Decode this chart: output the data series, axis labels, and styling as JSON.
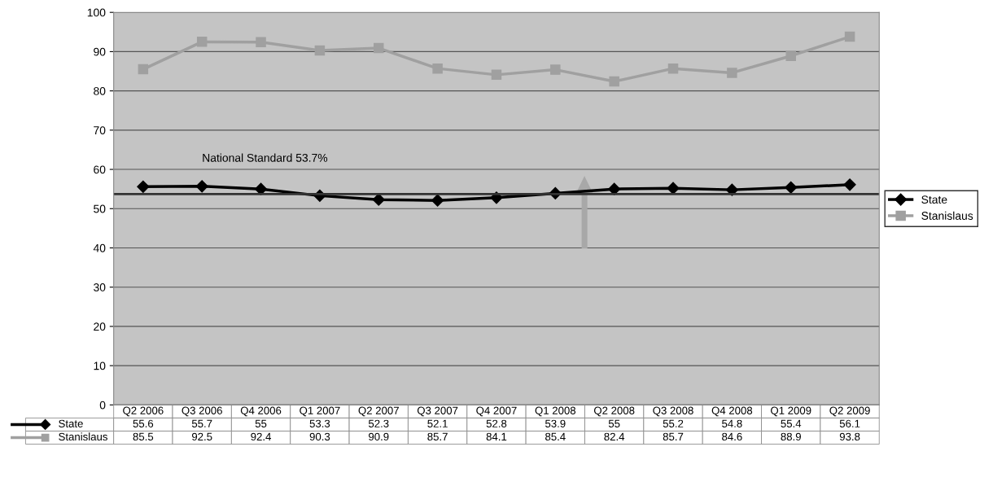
{
  "chart_data": {
    "type": "line",
    "categories": [
      "Q2 2006",
      "Q3 2006",
      "Q4 2006",
      "Q1 2007",
      "Q2 2007",
      "Q3 2007",
      "Q4 2007",
      "Q1 2008",
      "Q2 2008",
      "Q3 2008",
      "Q4 2008",
      "Q1 2009",
      "Q2 2009"
    ],
    "series": [
      {
        "name": "State",
        "color": "#000000",
        "marker": "diamond",
        "values": [
          55.6,
          55.7,
          55,
          53.3,
          52.3,
          52.1,
          52.8,
          53.9,
          55,
          55.2,
          54.8,
          55.4,
          56.1
        ]
      },
      {
        "name": "Stanislaus",
        "color": "#a0a0a0",
        "marker": "square",
        "values": [
          85.5,
          92.5,
          92.4,
          90.3,
          90.9,
          85.7,
          84.1,
          85.4,
          82.4,
          85.7,
          84.6,
          88.9,
          93.8
        ]
      }
    ],
    "ylim": [
      0,
      100
    ],
    "yticks": [
      0,
      10,
      20,
      30,
      40,
      50,
      60,
      70,
      80,
      90,
      100
    ],
    "grid": "y",
    "legend": "right",
    "data_labels": true,
    "ref_lines": [
      {
        "axis": "y",
        "value": 53.7,
        "label": "National Standard 53.7%",
        "color": "#333333",
        "line_style": "solid"
      }
    ]
  }
}
